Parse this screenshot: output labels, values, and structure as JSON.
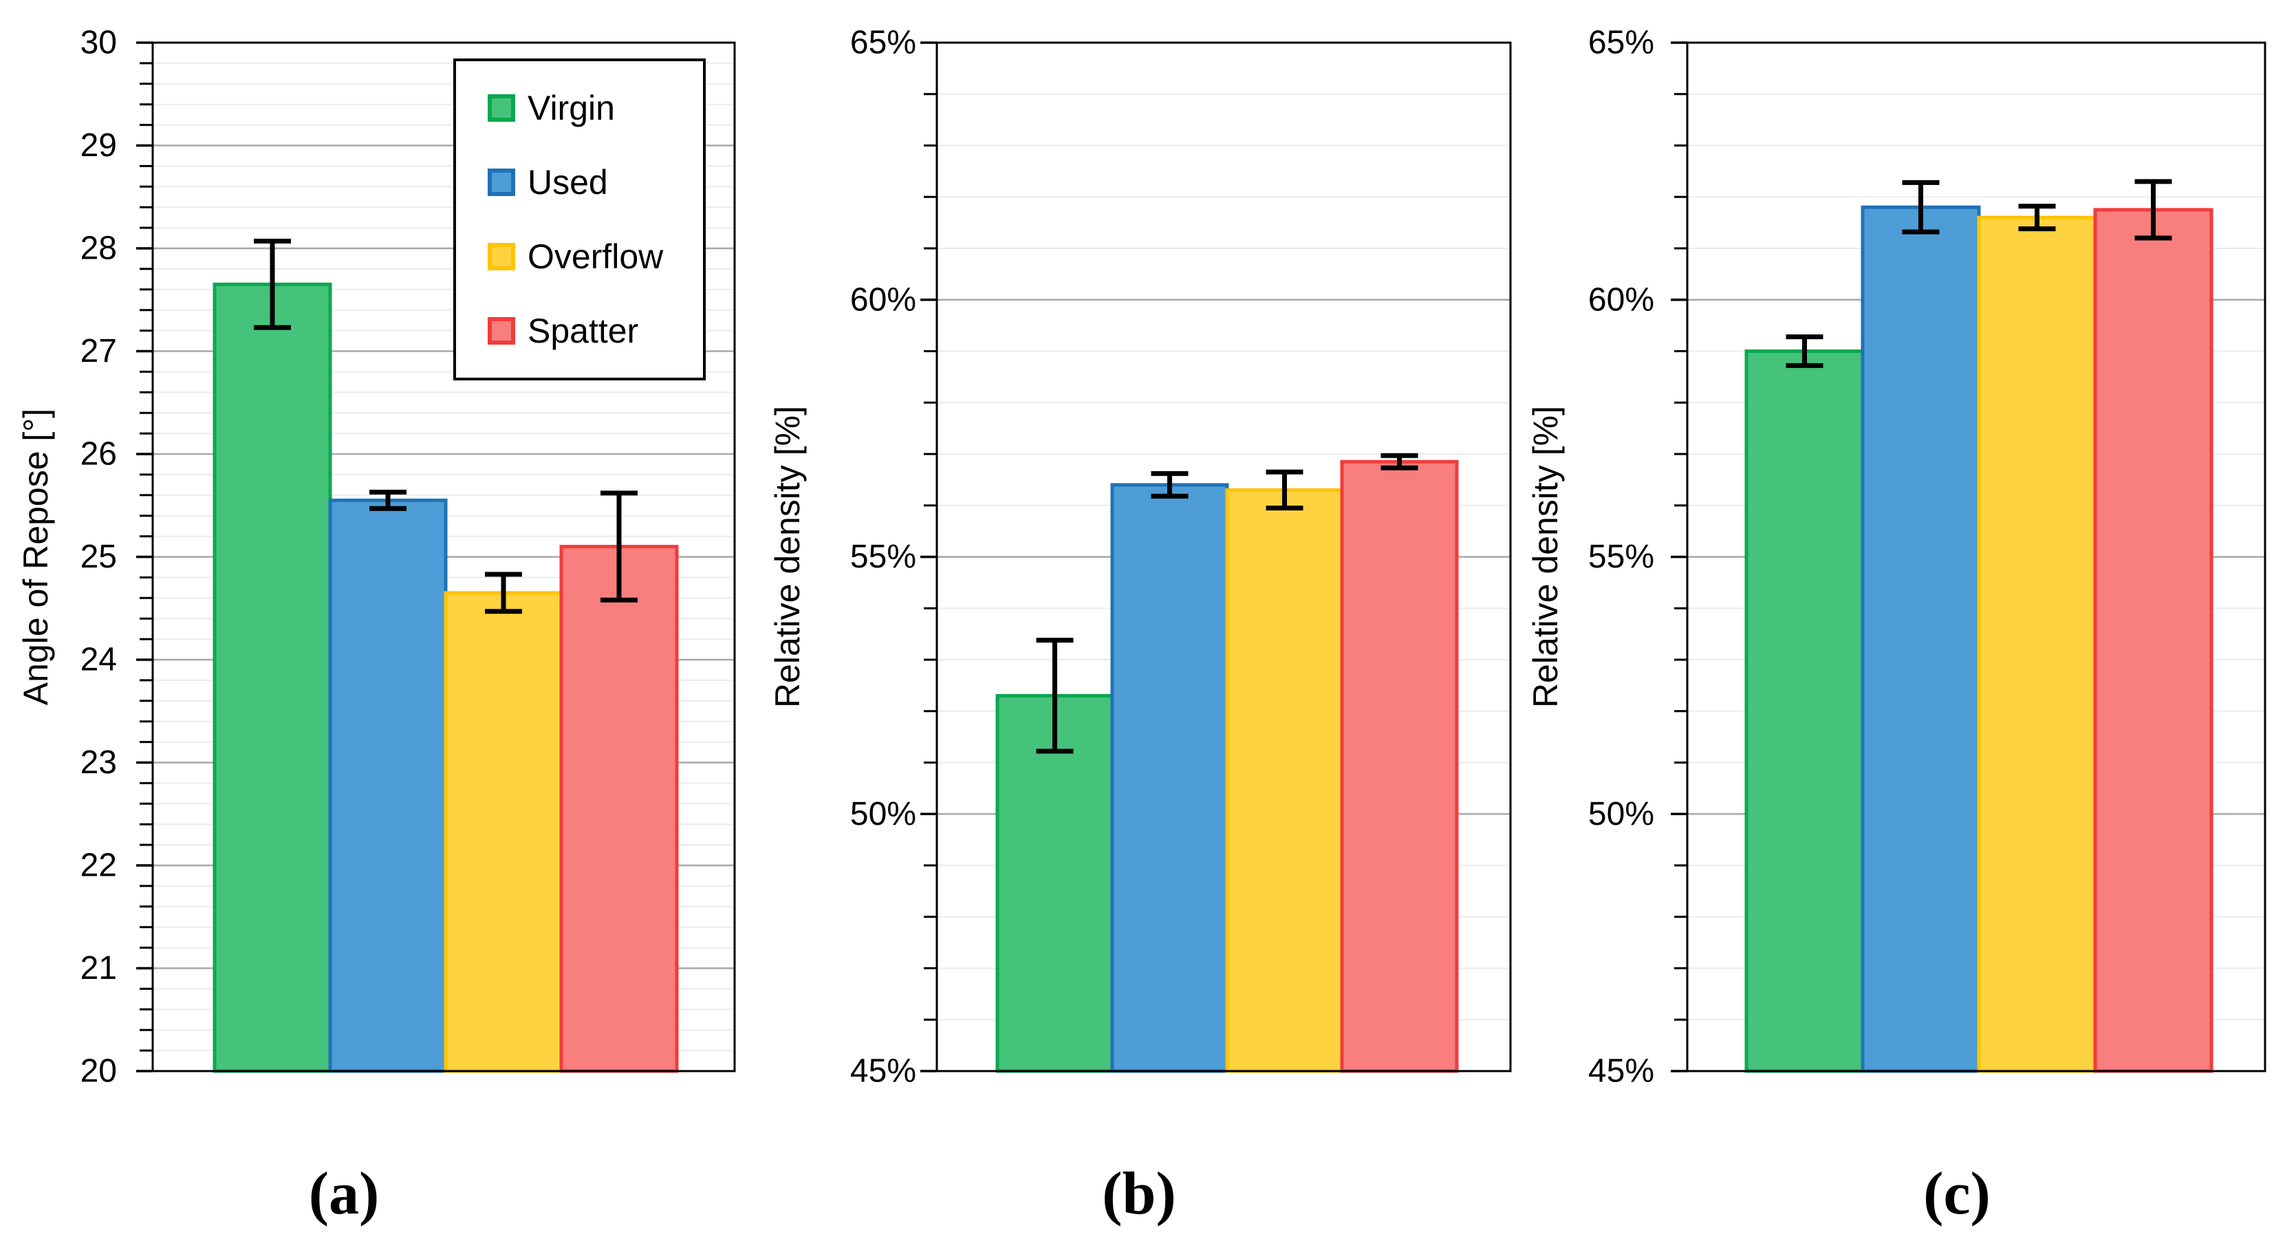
{
  "legend": {
    "position": "top-right-inside-panel-a",
    "items": [
      {
        "label": "Virgin",
        "fill": "#45C37A",
        "stroke": "#0AA850"
      },
      {
        "label": "Used",
        "fill": "#4E9DD6",
        "stroke": "#1F72B8"
      },
      {
        "label": "Overflow",
        "fill": "#FFD240",
        "stroke": "#FEC303"
      },
      {
        "label": "Spatter",
        "fill": "#F97E7E",
        "stroke": "#F23B3B"
      }
    ]
  },
  "colors": {
    "frame": "#000000",
    "grid_major": "#A8A8A8",
    "grid_minor": "#EBEBEB",
    "error_bar": "#000000",
    "background": "#FFFFFF"
  },
  "chart_data": [
    {
      "type": "bar",
      "panel_label": "(a)",
      "ylabel": "Angle of Repose [°]",
      "ylim": [
        20,
        30
      ],
      "ytick_step": 1,
      "yminor_step": 0.2,
      "ytick_suffix": "",
      "grid": true,
      "legend_visible": true,
      "categories": [
        "Virgin",
        "Used",
        "Overflow",
        "Spatter"
      ],
      "values": [
        27.65,
        25.55,
        24.65,
        25.1
      ],
      "errors": [
        0.42,
        0.08,
        0.18,
        0.52
      ]
    },
    {
      "type": "bar",
      "panel_label": "(b)",
      "ylabel": "Relative density [%]",
      "ylim": [
        45,
        65
      ],
      "ytick_step": 5,
      "yminor_step": 1,
      "ytick_suffix": "%",
      "grid": true,
      "legend_visible": false,
      "categories": [
        "Virgin",
        "Used",
        "Overflow",
        "Spatter"
      ],
      "values": [
        52.3,
        56.4,
        56.3,
        56.85
      ],
      "errors": [
        1.08,
        0.22,
        0.35,
        0.12
      ]
    },
    {
      "type": "bar",
      "panel_label": "(c)",
      "ylabel": "Relative density [%]",
      "ylim": [
        45,
        65
      ],
      "ytick_step": 5,
      "yminor_step": 1,
      "ytick_suffix": "%",
      "grid": true,
      "legend_visible": false,
      "categories": [
        "Virgin",
        "Used",
        "Overflow",
        "Spatter"
      ],
      "values": [
        59.0,
        61.8,
        61.6,
        61.75
      ],
      "errors": [
        0.28,
        0.48,
        0.22,
        0.55
      ]
    }
  ]
}
